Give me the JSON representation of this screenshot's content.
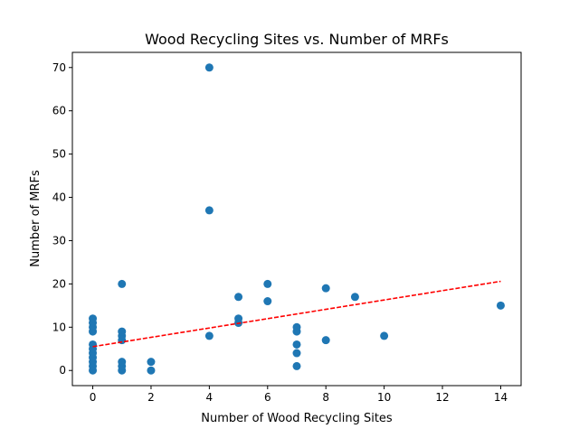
{
  "chart_data": {
    "type": "scatter",
    "title": "Wood Recycling Sites vs. Number of MRFs",
    "xlabel": "Number of Wood Recycling Sites",
    "ylabel": "Number of MRFs",
    "xlim": [
      -0.7,
      14.7
    ],
    "ylim": [
      -3.5,
      73.5
    ],
    "xticks": [
      0,
      2,
      4,
      6,
      8,
      10,
      12,
      14
    ],
    "yticks": [
      0,
      10,
      20,
      30,
      40,
      50,
      60,
      70
    ],
    "grid": false,
    "legend": "none",
    "point_color": "#1f77b4",
    "trend_color": "#ff0000",
    "points": [
      {
        "x": 0,
        "y": 0
      },
      {
        "x": 0,
        "y": 1
      },
      {
        "x": 0,
        "y": 2
      },
      {
        "x": 0,
        "y": 3
      },
      {
        "x": 0,
        "y": 4
      },
      {
        "x": 0,
        "y": 5
      },
      {
        "x": 0,
        "y": 6
      },
      {
        "x": 0,
        "y": 9
      },
      {
        "x": 0,
        "y": 10
      },
      {
        "x": 0,
        "y": 11
      },
      {
        "x": 0,
        "y": 12
      },
      {
        "x": 1,
        "y": 0
      },
      {
        "x": 1,
        "y": 1
      },
      {
        "x": 1,
        "y": 2
      },
      {
        "x": 1,
        "y": 7
      },
      {
        "x": 1,
        "y": 8
      },
      {
        "x": 1,
        "y": 9
      },
      {
        "x": 1,
        "y": 20
      },
      {
        "x": 2,
        "y": 0
      },
      {
        "x": 2,
        "y": 2
      },
      {
        "x": 4,
        "y": 8
      },
      {
        "x": 4,
        "y": 37
      },
      {
        "x": 4,
        "y": 70
      },
      {
        "x": 5,
        "y": 11
      },
      {
        "x": 5,
        "y": 12
      },
      {
        "x": 5,
        "y": 17
      },
      {
        "x": 6,
        "y": 16
      },
      {
        "x": 6,
        "y": 20
      },
      {
        "x": 7,
        "y": 1
      },
      {
        "x": 7,
        "y": 4
      },
      {
        "x": 7,
        "y": 6
      },
      {
        "x": 7,
        "y": 9
      },
      {
        "x": 7,
        "y": 10
      },
      {
        "x": 8,
        "y": 7
      },
      {
        "x": 8,
        "y": 19
      },
      {
        "x": 9,
        "y": 17
      },
      {
        "x": 10,
        "y": 8
      },
      {
        "x": 14,
        "y": 15
      }
    ],
    "trendline": {
      "x": [
        0,
        14
      ],
      "y": [
        5.5,
        20.6
      ]
    }
  }
}
